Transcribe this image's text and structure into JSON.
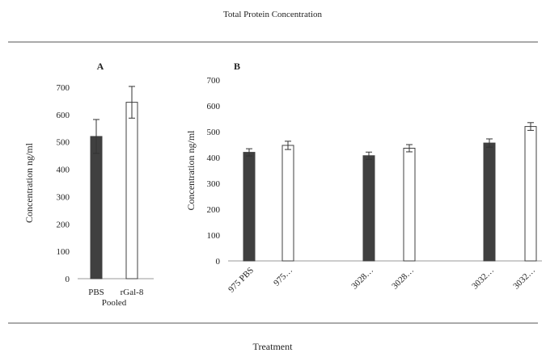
{
  "figure": {
    "title": "Total Protein Concentration",
    "xlabel": "Treatment"
  },
  "colors": {
    "dark_bar": "#404040",
    "light_bar": "#ffffff",
    "bar_outline": "#404040",
    "rule": "#555555"
  },
  "chart_data": [
    {
      "type": "bar",
      "panel_label": "A",
      "ylabel": "Concentration ng/ml",
      "ylim": [
        0,
        700
      ],
      "yticks": [
        0,
        100,
        200,
        300,
        400,
        500,
        600,
        700
      ],
      "categories": [
        "PBS",
        "rGal-8"
      ],
      "group_label": "Pooled",
      "values": [
        520,
        645
      ],
      "errors": [
        62,
        58
      ],
      "bar_colors": [
        "dark",
        "light"
      ],
      "grid": false
    },
    {
      "type": "bar",
      "panel_label": "B",
      "ylabel": "Concentration ng/ml",
      "ylim": [
        0,
        700
      ],
      "yticks": [
        0,
        100,
        200,
        300,
        400,
        500,
        600,
        700
      ],
      "categories": [
        "975 PBS",
        "975…",
        "3028…",
        "3028…",
        "3032…",
        "3032…"
      ],
      "values": [
        420,
        447,
        407,
        436,
        456,
        520
      ],
      "errors": [
        14,
        16,
        14,
        14,
        16,
        15
      ],
      "bar_colors": [
        "dark",
        "light",
        "dark",
        "light",
        "dark",
        "light"
      ],
      "grid": false
    }
  ]
}
